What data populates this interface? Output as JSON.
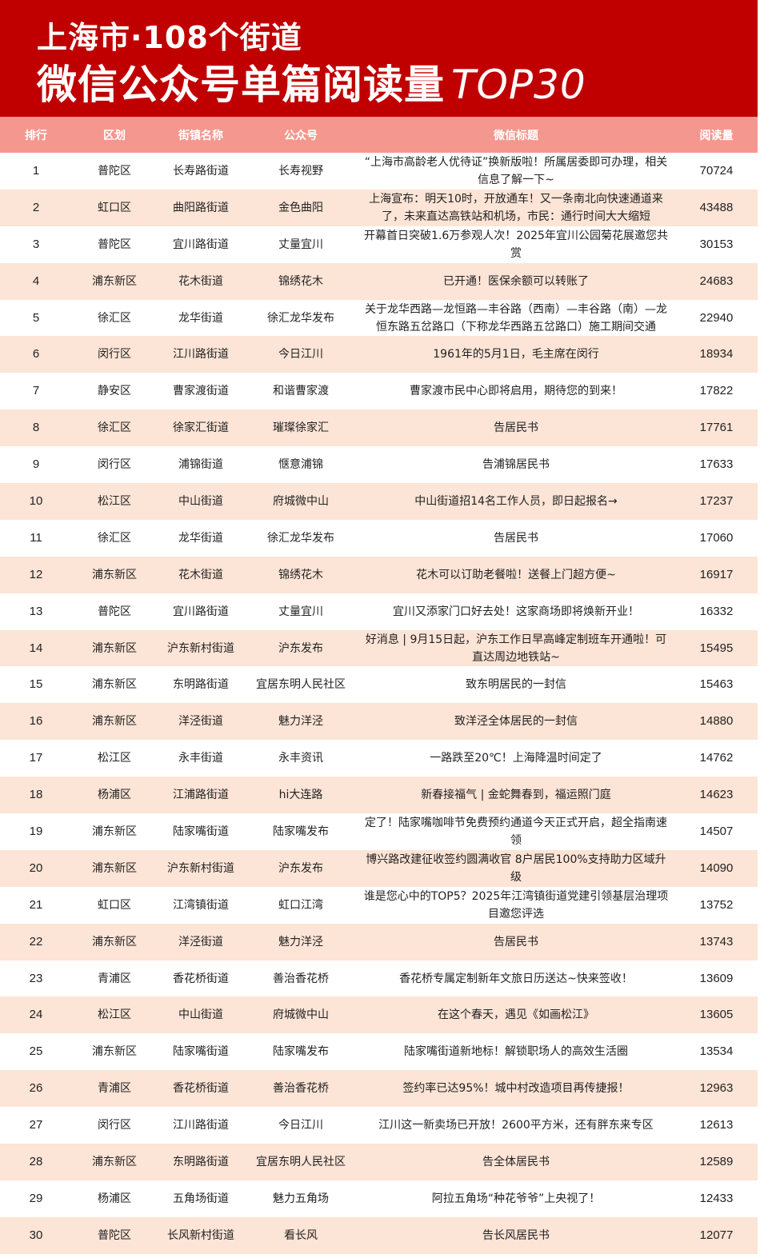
{
  "title": {
    "line1": "上海市·108个街道",
    "line2": "微信公众号单篇阅读量",
    "line2_suffix": "TOP30"
  },
  "colors": {
    "banner": "#c00000",
    "header_row": "#f4978e",
    "alt_row": "#fce4d6"
  },
  "columns": [
    "排行",
    "区划",
    "街镇名称",
    "公众号",
    "微信标题",
    "阅读量"
  ],
  "rows": [
    [
      "1",
      "普陀区",
      "长寿路街道",
      "长寿视野",
      "“上海市高龄老人优待证”换新版啦！所属居委即可办理，相关信息了解一下~",
      "70724"
    ],
    [
      "2",
      "虹口区",
      "曲阳路街道",
      "金色曲阳",
      "上海宣布：明天10时，开放通车！又一条南北向快速通道来了，未来直达高铁站和机场，市民：通行时间大大缩短",
      "43488"
    ],
    [
      "3",
      "普陀区",
      "宜川路街道",
      "丈量宜川",
      "开幕首日突破1.6万参观人次！2025年宜川公园菊花展邀您共赏",
      "30153"
    ],
    [
      "4",
      "浦东新区",
      "花木街道",
      "锦绣花木",
      "已开通！医保余额可以转账了",
      "24683"
    ],
    [
      "5",
      "徐汇区",
      "龙华街道",
      "徐汇龙华发布",
      "关于龙华西路—龙恒路—丰谷路（西南）—丰谷路（南）—龙恒东路五岔路口（下称龙华西路五岔路口）施工期间交通",
      "22940"
    ],
    [
      "6",
      "闵行区",
      "江川路街道",
      "今日江川",
      "1961年的5月1日，毛主席在闵行",
      "18934"
    ],
    [
      "7",
      "静安区",
      "曹家渡街道",
      "和谐曹家渡",
      "曹家渡市民中心即将启用，期待您的到来！",
      "17822"
    ],
    [
      "8",
      "徐汇区",
      "徐家汇街道",
      "璀璨徐家汇",
      "告居民书",
      "17761"
    ],
    [
      "9",
      "闵行区",
      "浦锦街道",
      "惬意浦锦",
      "告浦锦居民书",
      "17633"
    ],
    [
      "10",
      "松江区",
      "中山街道",
      "府城微中山",
      "中山街道招14名工作人员，即日起报名→",
      "17237"
    ],
    [
      "11",
      "徐汇区",
      "龙华街道",
      "徐汇龙华发布",
      "告居民书",
      "17060"
    ],
    [
      "12",
      "浦东新区",
      "花木街道",
      "锦绣花木",
      "花木可以订助老餐啦！送餐上门超方便~",
      "16917"
    ],
    [
      "13",
      "普陀区",
      "宜川路街道",
      "丈量宜川",
      "宜川又添家门口好去处！这家商场即将焕新开业！",
      "16332"
    ],
    [
      "14",
      "浦东新区",
      "沪东新村街道",
      "沪东发布",
      "好消息 | 9月15日起，沪东工作日早高峰定制班车开通啦！可直达周边地铁站~",
      "15495"
    ],
    [
      "15",
      "浦东新区",
      "东明路街道",
      "宜居东明人民社区",
      "致东明居民的一封信",
      "15463"
    ],
    [
      "16",
      "浦东新区",
      "洋泾街道",
      "魅力洋泾",
      "致洋泾全体居民的一封信",
      "14880"
    ],
    [
      "17",
      "松江区",
      "永丰街道",
      "永丰资讯",
      "一路跌至20℃！上海降温时间定了",
      "14762"
    ],
    [
      "18",
      "杨浦区",
      "江浦路街道",
      "hi大连路",
      "新春接福气 | 金蛇舞春到，福运照门庭",
      "14623"
    ],
    [
      "19",
      "浦东新区",
      "陆家嘴街道",
      "陆家嘴发布",
      "定了！陆家嘴咖啡节免费预约通道今天正式开启，超全指南速领",
      "14507"
    ],
    [
      "20",
      "浦东新区",
      "沪东新村街道",
      "沪东发布",
      "博兴路改建征收签约圆满收官 8户居民100%支持助力区域升级",
      "14090"
    ],
    [
      "21",
      "虹口区",
      "江湾镇街道",
      "虹口江湾",
      "谁是您心中的TOP5？2025年江湾镇街道党建引领基层治理项目邀您评选",
      "13752"
    ],
    [
      "22",
      "浦东新区",
      "洋泾街道",
      "魅力洋泾",
      "告居民书",
      "13743"
    ],
    [
      "23",
      "青浦区",
      "香花桥街道",
      "善治香花桥",
      "香花桥专属定制新年文旅日历送达~快来签收！",
      "13609"
    ],
    [
      "24",
      "松江区",
      "中山街道",
      "府城微中山",
      "在这个春天，遇见《如画松江》",
      "13605"
    ],
    [
      "25",
      "浦东新区",
      "陆家嘴街道",
      "陆家嘴发布",
      "陆家嘴街道新地标！解锁职场人的高效生活圈",
      "13534"
    ],
    [
      "26",
      "青浦区",
      "香花桥街道",
      "善治香花桥",
      "签约率已达95%！城中村改造项目再传捷报！",
      "12963"
    ],
    [
      "27",
      "闵行区",
      "江川路街道",
      "今日江川",
      "江川这一新卖场已开放！2600平方米，还有胖东来专区",
      "12613"
    ],
    [
      "28",
      "浦东新区",
      "东明路街道",
      "宜居东明人民社区",
      "告全体居民书",
      "12589"
    ],
    [
      "29",
      "杨浦区",
      "五角场街道",
      "魅力五角场",
      "阿拉五角场“种花爷爷”上央视了！",
      "12433"
    ],
    [
      "30",
      "普陀区",
      "长风新村街道",
      "看长风",
      "告长风居民书",
      "12077"
    ]
  ]
}
